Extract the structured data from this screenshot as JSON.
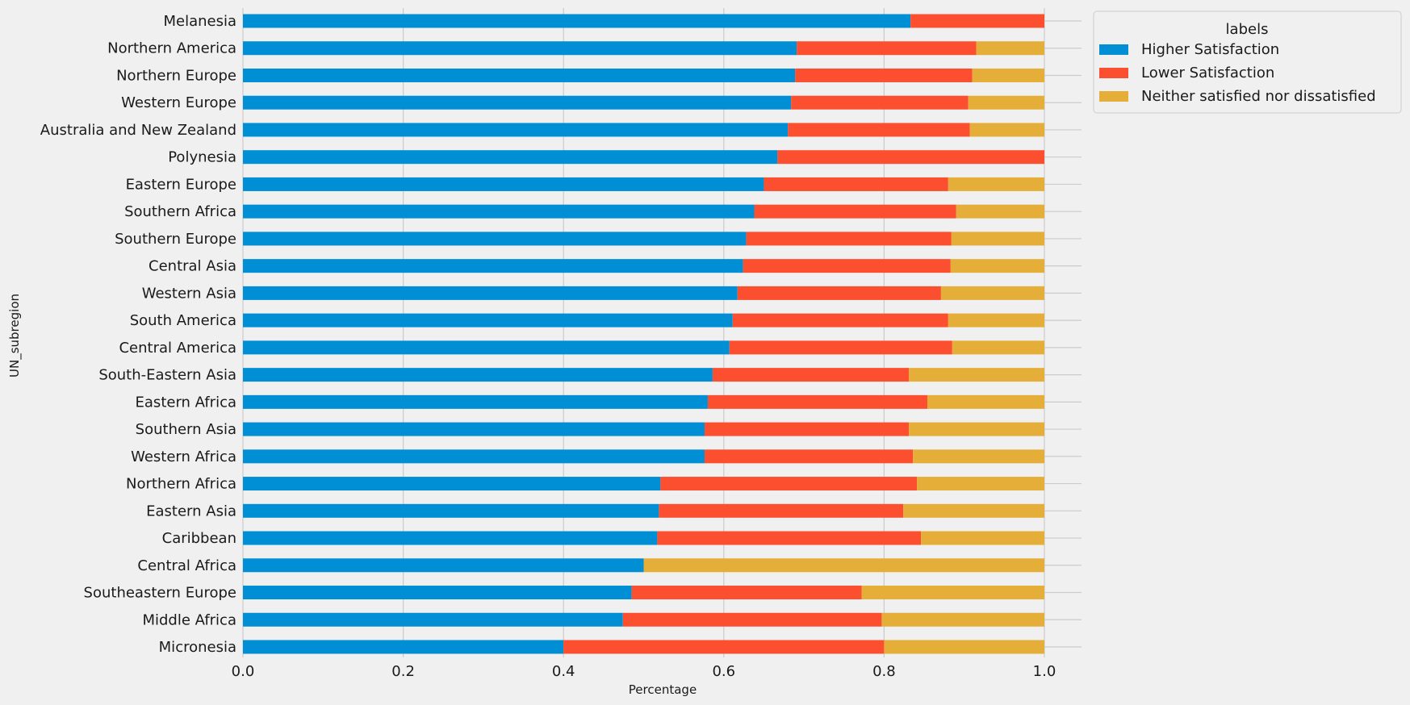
{
  "chart_data": {
    "type": "bar",
    "orientation": "horizontal",
    "stacked": true,
    "xlabel": "Percentage",
    "ylabel": "UN_subregion",
    "xlim": [
      0,
      1.0
    ],
    "xticks": [
      "0.0",
      "0.2",
      "0.4",
      "0.6",
      "0.8",
      "1.0"
    ],
    "grid": true,
    "legend": {
      "title": "labels",
      "placement": "outside-top-right"
    },
    "categories": [
      "Melanesia",
      "Northern America",
      "Northern Europe",
      "Western Europe",
      "Australia and New Zealand",
      "Polynesia",
      "Eastern Europe",
      "Southern Africa",
      "Southern Europe",
      "Central Asia",
      "Western Asia",
      "South America",
      "Central America",
      "South-Eastern Asia",
      "Eastern Africa",
      "Southern Asia",
      "Western Africa",
      "Northern Africa",
      "Eastern Asia",
      "Caribbean",
      "Central Africa",
      "Southeastern Europe",
      "Middle Africa",
      "Micronesia"
    ],
    "series": [
      {
        "name": "Higher Satisfaction",
        "color": "#008fd5",
        "values": [
          0.833,
          0.691,
          0.689,
          0.684,
          0.68,
          0.667,
          0.65,
          0.638,
          0.628,
          0.624,
          0.617,
          0.611,
          0.607,
          0.586,
          0.58,
          0.576,
          0.576,
          0.521,
          0.519,
          0.517,
          0.5,
          0.485,
          0.474,
          0.4
        ]
      },
      {
        "name": "Lower Satisfaction",
        "color": "#fc4f30",
        "values": [
          0.167,
          0.224,
          0.221,
          0.221,
          0.227,
          0.333,
          0.23,
          0.252,
          0.256,
          0.259,
          0.254,
          0.269,
          0.278,
          0.245,
          0.274,
          0.255,
          0.26,
          0.32,
          0.305,
          0.329,
          0.0,
          0.287,
          0.323,
          0.4
        ]
      },
      {
        "name": "Neither satisfied nor dissatisfied",
        "color": "#e5ae38",
        "values": [
          0.0,
          0.085,
          0.09,
          0.095,
          0.093,
          0.0,
          0.12,
          0.11,
          0.116,
          0.117,
          0.129,
          0.12,
          0.115,
          0.169,
          0.146,
          0.169,
          0.164,
          0.159,
          0.176,
          0.154,
          0.5,
          0.228,
          0.203,
          0.2
        ]
      }
    ]
  }
}
